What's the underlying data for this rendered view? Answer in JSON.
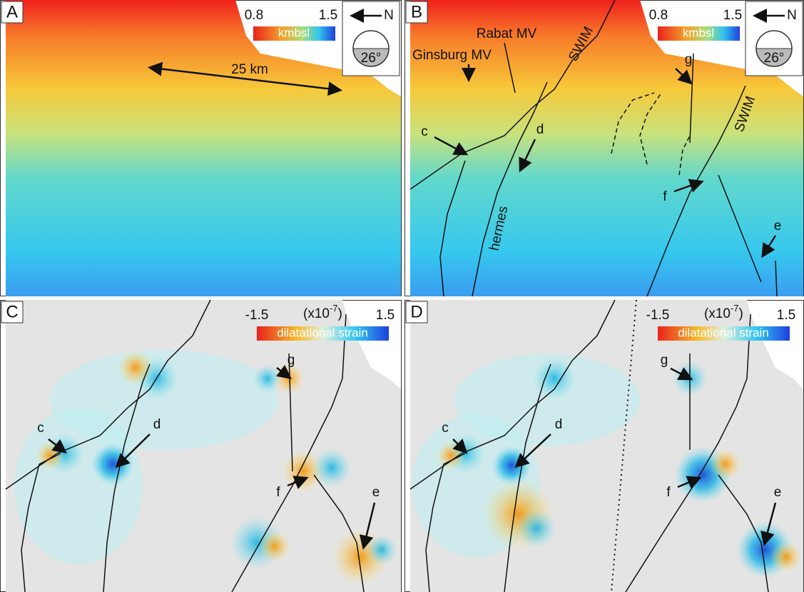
{
  "panels": [
    {
      "letter": "A",
      "colorbar": {
        "min": "0.8",
        "max": "1.5",
        "label": "kmbsl"
      },
      "orientation": {
        "north": "N",
        "dip": "26°"
      },
      "labels": [
        "25 km"
      ]
    },
    {
      "letter": "B",
      "colorbar": {
        "min": "0.8",
        "max": "1.5",
        "label": "kmbsl"
      },
      "orientation": {
        "north": "N",
        "dip": "26°"
      },
      "labels": [
        "Ginsburg MV",
        "Rabat MV",
        "SWIM",
        "g",
        "c",
        "d",
        "hermes",
        "f",
        "SWIM",
        "e"
      ]
    },
    {
      "letter": "C",
      "colorbar": {
        "min": "-1.5",
        "max": "1.5",
        "label": "dilatational strain",
        "scale": "(x10",
        "exponent": "-7",
        "scale_end": ")"
      },
      "labels": [
        "g",
        "c",
        "d",
        "f",
        "e"
      ]
    },
    {
      "letter": "D",
      "colorbar": {
        "min": "-1.5",
        "max": "1.5",
        "label": "dilatational strain",
        "scale": "(x10",
        "exponent": "-7",
        "scale_end": ")"
      },
      "labels": [
        "g",
        "c",
        "d",
        "f",
        "e"
      ]
    }
  ]
}
